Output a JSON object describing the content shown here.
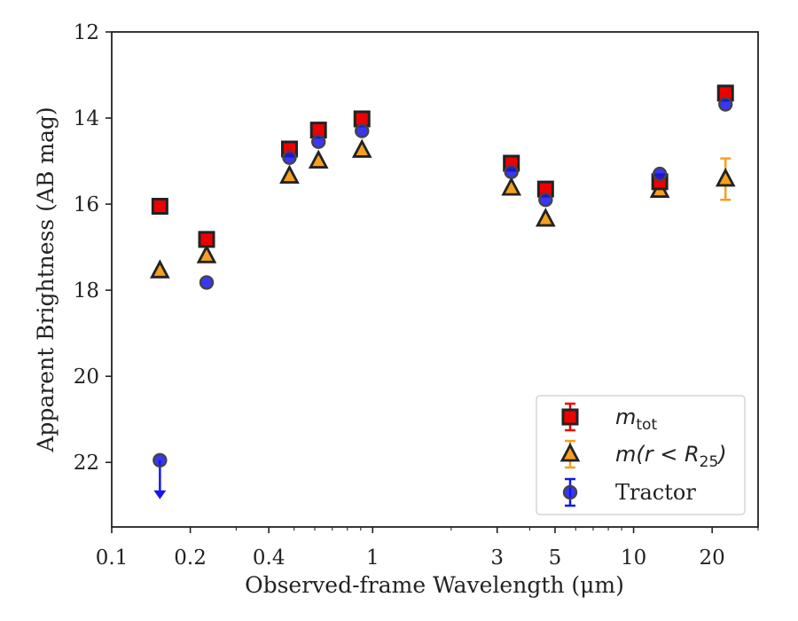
{
  "chart_data": {
    "type": "scatter",
    "xscale": "log",
    "yaxis_inverted": true,
    "xlim": [
      0.1,
      30
    ],
    "ylim": [
      12,
      23.5
    ],
    "xlabel": "Observed-frame Wavelength (μm)",
    "ylabel": "Apparent Brightness (AB mag)",
    "xticks": [
      {
        "value": 0.1,
        "label": "0.1"
      },
      {
        "value": 0.2,
        "label": "0.2"
      },
      {
        "value": 0.4,
        "label": "0.4"
      },
      {
        "value": 1,
        "label": "1"
      },
      {
        "value": 3,
        "label": "3"
      },
      {
        "value": 5,
        "label": "5"
      },
      {
        "value": 10,
        "label": "10"
      },
      {
        "value": 20,
        "label": "20"
      }
    ],
    "yticks": [
      {
        "value": 12,
        "label": "12"
      },
      {
        "value": 14,
        "label": "14"
      },
      {
        "value": 16,
        "label": "16"
      },
      {
        "value": 18,
        "label": "18"
      },
      {
        "value": 20,
        "label": "20"
      },
      {
        "value": 22,
        "label": "22"
      }
    ],
    "grid": false,
    "legend_position": "lower right",
    "series": [
      {
        "name": "m_tot",
        "legend_symbol": "m",
        "legend_subscript": "tot",
        "marker": "square",
        "color": "#ee0000",
        "errorbar_color": "#ee0000",
        "points": [
          {
            "x": 0.153,
            "y": 16.05
          },
          {
            "x": 0.231,
            "y": 16.82
          },
          {
            "x": 0.48,
            "y": 14.72
          },
          {
            "x": 0.62,
            "y": 14.28
          },
          {
            "x": 0.91,
            "y": 14.02
          },
          {
            "x": 3.4,
            "y": 15.05
          },
          {
            "x": 4.6,
            "y": 15.65
          },
          {
            "x": 12.6,
            "y": 15.48
          },
          {
            "x": 22.5,
            "y": 13.42
          }
        ]
      },
      {
        "name": "m(r < R25)",
        "legend_text": "m(r < R",
        "legend_subscript": "25",
        "legend_tail": ")",
        "marker": "triangle",
        "color": "#f5a01e",
        "errorbar_color": "#f5a01e",
        "points": [
          {
            "x": 0.153,
            "y": 17.55,
            "err": 0
          },
          {
            "x": 0.231,
            "y": 17.2,
            "err": 0
          },
          {
            "x": 0.48,
            "y": 15.35,
            "err": 0
          },
          {
            "x": 0.62,
            "y": 15.0,
            "err": 0
          },
          {
            "x": 0.91,
            "y": 14.75,
            "err": 0
          },
          {
            "x": 3.4,
            "y": 15.63,
            "err": 0
          },
          {
            "x": 4.6,
            "y": 16.35,
            "err": 0
          },
          {
            "x": 12.6,
            "y": 15.68,
            "err": 0
          },
          {
            "x": 22.5,
            "y": 15.42,
            "err": 0.48
          }
        ]
      },
      {
        "name": "Tractor",
        "marker": "circle",
        "color": "#1515f0",
        "errorbar_color": "#1515f0",
        "points": [
          {
            "x": 0.153,
            "y": 21.95,
            "upper_limit": true
          },
          {
            "x": 0.231,
            "y": 17.82
          },
          {
            "x": 0.48,
            "y": 14.92
          },
          {
            "x": 0.62,
            "y": 14.55
          },
          {
            "x": 0.91,
            "y": 14.3
          },
          {
            "x": 3.4,
            "y": 15.25
          },
          {
            "x": 4.6,
            "y": 15.9
          },
          {
            "x": 12.6,
            "y": 15.3
          },
          {
            "x": 22.5,
            "y": 13.68
          }
        ]
      }
    ]
  }
}
